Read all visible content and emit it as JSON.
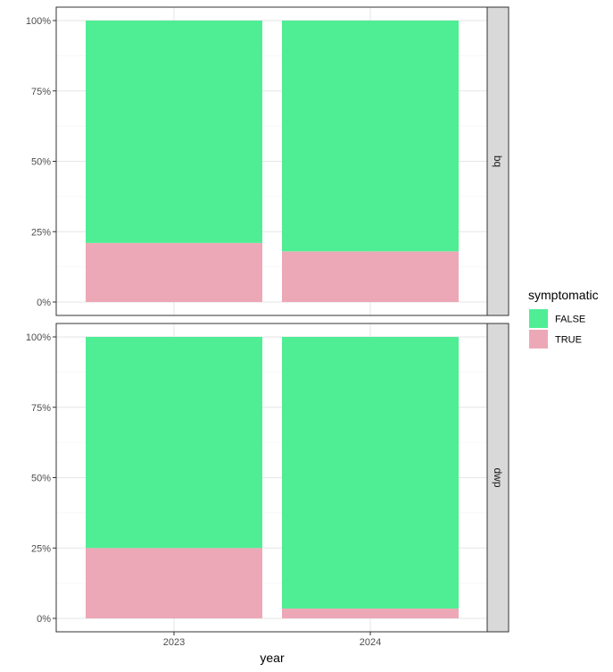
{
  "chart_data": {
    "type": "bar",
    "stacked": true,
    "position": "fill",
    "xlabel": "year",
    "ylabel": "",
    "categories": [
      "2023",
      "2024"
    ],
    "y_ticks": [
      "0%",
      "25%",
      "50%",
      "75%",
      "100%"
    ],
    "ylim": [
      0,
      1
    ],
    "legend": {
      "title": "symptomatic",
      "placement": "right",
      "entries": [
        {
          "label": "FALSE",
          "color": "#4FEE94"
        },
        {
          "label": "TRUE",
          "color": "#EDA8B7"
        }
      ]
    },
    "facets": [
      {
        "label": "bq",
        "series": [
          {
            "name": "TRUE",
            "values": [
              0.21,
              0.18
            ]
          },
          {
            "name": "FALSE",
            "values": [
              0.79,
              0.82
            ]
          }
        ]
      },
      {
        "label": "dwp",
        "series": [
          {
            "name": "TRUE",
            "values": [
              0.25,
              0.035
            ]
          },
          {
            "name": "FALSE",
            "values": [
              0.75,
              0.965
            ]
          }
        ]
      }
    ],
    "grid": true
  }
}
